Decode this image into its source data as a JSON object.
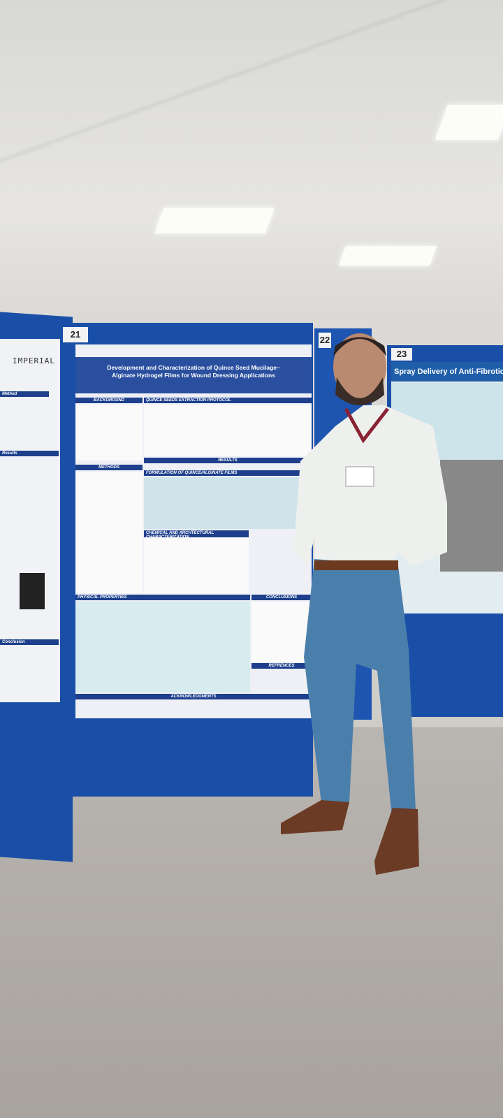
{
  "scene": {
    "board_numbers": [
      "21",
      "22",
      "23"
    ],
    "left_poster": {
      "header": "IMPERIAL",
      "sections": [
        "Method",
        "Results",
        "Conclusion"
      ]
    },
    "main_poster": {
      "title": "Development and Characterization of Quince Seed Mucilage–Alginate Hydrogel Films for Wound Dressing Applications",
      "sections": [
        "BACKGROUND",
        "QUINCE SEEDS EXTRACTION PROTOCOL",
        "METHODS",
        "RESULTS",
        "FORMULATION OF QUINCE/ALGINATE FILMS",
        "CHEMICAL AND ARCHTECTURAL CHARACTERIZATION",
        "PHYSICAL PROPERTIES",
        "CONCLUSIONS",
        "REFRENCES",
        "ACKNOWLEDGMENTS"
      ]
    },
    "right_poster": {
      "title": "Spray Delivery of Anti-Fibrotic P"
    }
  }
}
